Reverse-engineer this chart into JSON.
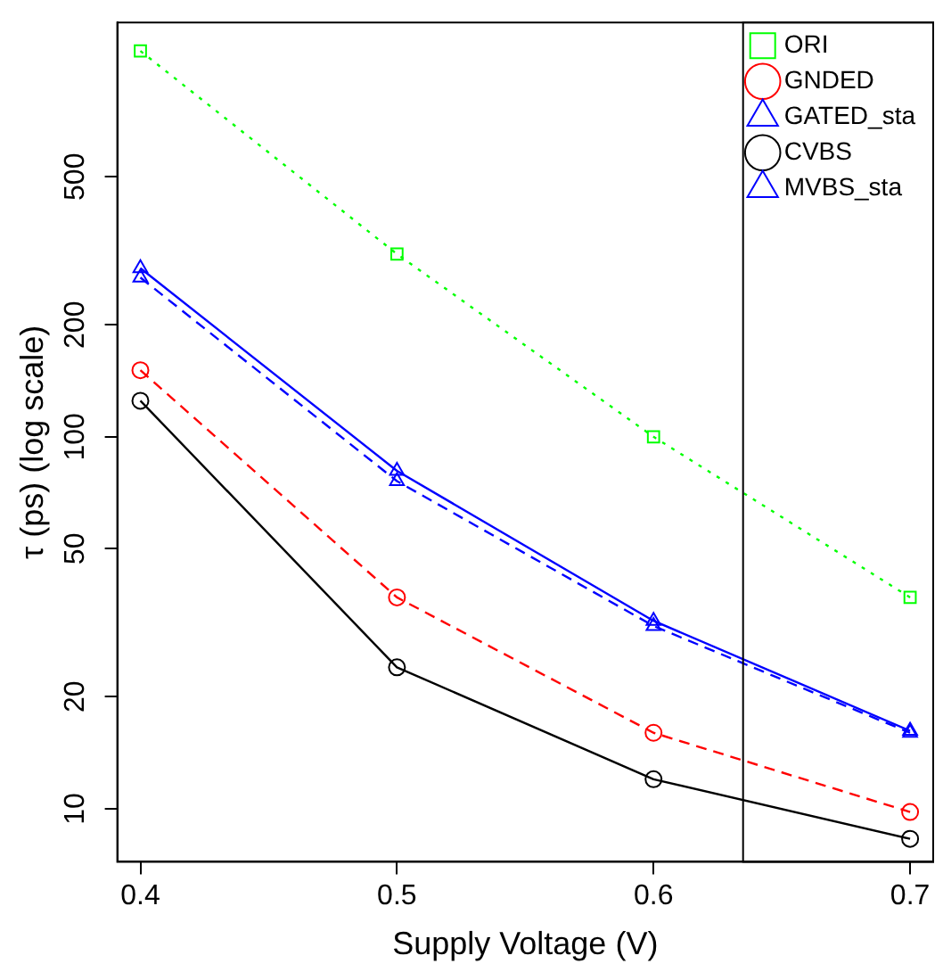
{
  "chart_data": {
    "type": "line",
    "xlabel": "Supply Voltage (V)",
    "ylabel": "τ (ps) (log scale)",
    "x": [
      0.4,
      0.5,
      0.6,
      0.7
    ],
    "log": "y",
    "xlim": [
      0.391,
      0.709
    ],
    "ylim": [
      7.2,
      1300
    ],
    "xticks": [
      0.4,
      0.5,
      0.6,
      0.7
    ],
    "yticks": [
      10,
      20,
      50,
      100,
      200,
      500
    ],
    "grid": false,
    "legend": "top right",
    "series": [
      {
        "name": "ORI",
        "color": "#00ff00",
        "marker": "square",
        "line_style": "dotted",
        "values": [
          1090,
          310,
          100,
          37
        ]
      },
      {
        "name": "GNDED",
        "color": "#ff0000",
        "marker": "circle",
        "line_style": "dashed",
        "values": [
          151,
          37,
          16,
          9.8
        ]
      },
      {
        "name": "GATED_sta",
        "color": "#0000ff",
        "marker": "triangle",
        "line_style": "dashed",
        "values": [
          268,
          76,
          31,
          16
        ]
      },
      {
        "name": "CVBS",
        "color": "#000000",
        "marker": "circle",
        "line_style": "solid",
        "values": [
          125,
          24,
          12,
          8.3
        ]
      },
      {
        "name": "MVBS_sta",
        "color": "#0000ff",
        "marker": "triangle",
        "line_style": "solid",
        "values": [
          284,
          81,
          32,
          16.2
        ]
      }
    ]
  }
}
